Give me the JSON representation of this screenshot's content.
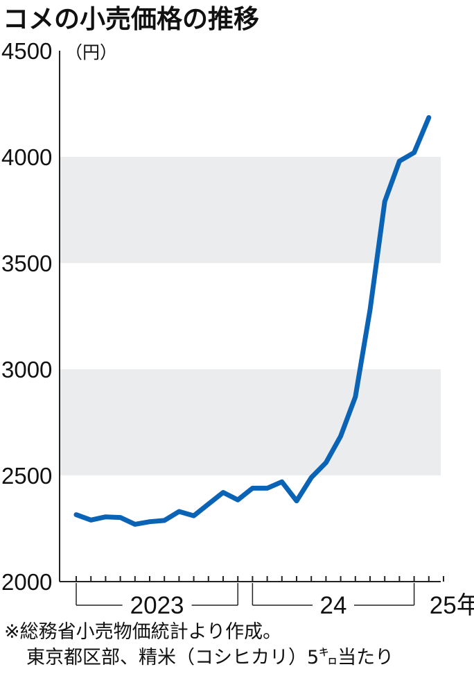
{
  "chart_data": {
    "type": "line",
    "title": "コメの小売価格の推移",
    "unit_label": "（円）",
    "ylim": [
      2000,
      4500
    ],
    "yticks": [
      "2000",
      "2500",
      "3000",
      "3500",
      "4000",
      "4500"
    ],
    "ytick_values": [
      2000,
      2500,
      3000,
      3500,
      4000,
      4500
    ],
    "grid_bands": "alternating gray bands",
    "year_groups": [
      {
        "label": "2023",
        "start_month": 1,
        "end_month": 12
      },
      {
        "label": "24",
        "start_month": 13,
        "end_month": 24
      },
      {
        "label": "25年",
        "start_month": 25,
        "end_month": 26
      }
    ],
    "line_color": "#0a63b4",
    "band_color": "#ebeced",
    "series": [
      {
        "values": [
          2315,
          2290,
          2305,
          2302,
          2270,
          2282,
          2288,
          2330,
          2310,
          2365,
          2420,
          2385,
          2440,
          2440,
          2470,
          2380,
          2490,
          2560,
          2685,
          2870,
          3280,
          3790,
          3980,
          4020,
          4185
        ]
      }
    ]
  },
  "notes": {
    "line1": "※総務省小売物価統計より作成。",
    "line2": "東京都区部、精米（コシヒカリ）5㌔当たり"
  }
}
